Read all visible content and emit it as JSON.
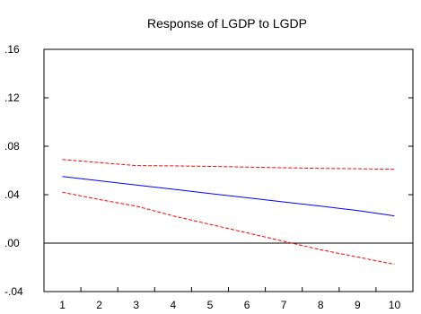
{
  "chart_data": {
    "type": "line",
    "title": "Response of LGDP to LGDP",
    "x": [
      1,
      2,
      3,
      4,
      5,
      6,
      7,
      8,
      9,
      10
    ],
    "x_tick_labels": [
      "1",
      "2",
      "3",
      "4",
      "5",
      "6",
      "7",
      "8",
      "9",
      "10"
    ],
    "ylim": [
      -0.04,
      0.16
    ],
    "y_ticks": [
      -0.04,
      0.0,
      0.04,
      0.08,
      0.12,
      0.16
    ],
    "y_tick_labels": [
      "-.04",
      ".00",
      ".04",
      ".08",
      ".12",
      ".16"
    ],
    "zero_line": true,
    "series": [
      {
        "key": "response",
        "color": "#0000ff",
        "dashed": false,
        "values": [
          0.055,
          0.0515,
          0.048,
          0.0445,
          0.041,
          0.0375,
          0.034,
          0.0305,
          0.027,
          0.0225
        ]
      },
      {
        "key": "upper",
        "color": "#ff0000",
        "dashed": true,
        "values": [
          0.069,
          0.0665,
          0.064,
          0.0638,
          0.0633,
          0.0628,
          0.0622,
          0.0617,
          0.0614,
          0.061
        ]
      },
      {
        "key": "lower",
        "color": "#ff0000",
        "dashed": true,
        "values": [
          0.042,
          0.036,
          0.0305,
          0.0225,
          0.0155,
          0.0085,
          0.0015,
          -0.0055,
          -0.0115,
          -0.0175
        ]
      }
    ],
    "xlabel": "",
    "ylabel": ""
  }
}
